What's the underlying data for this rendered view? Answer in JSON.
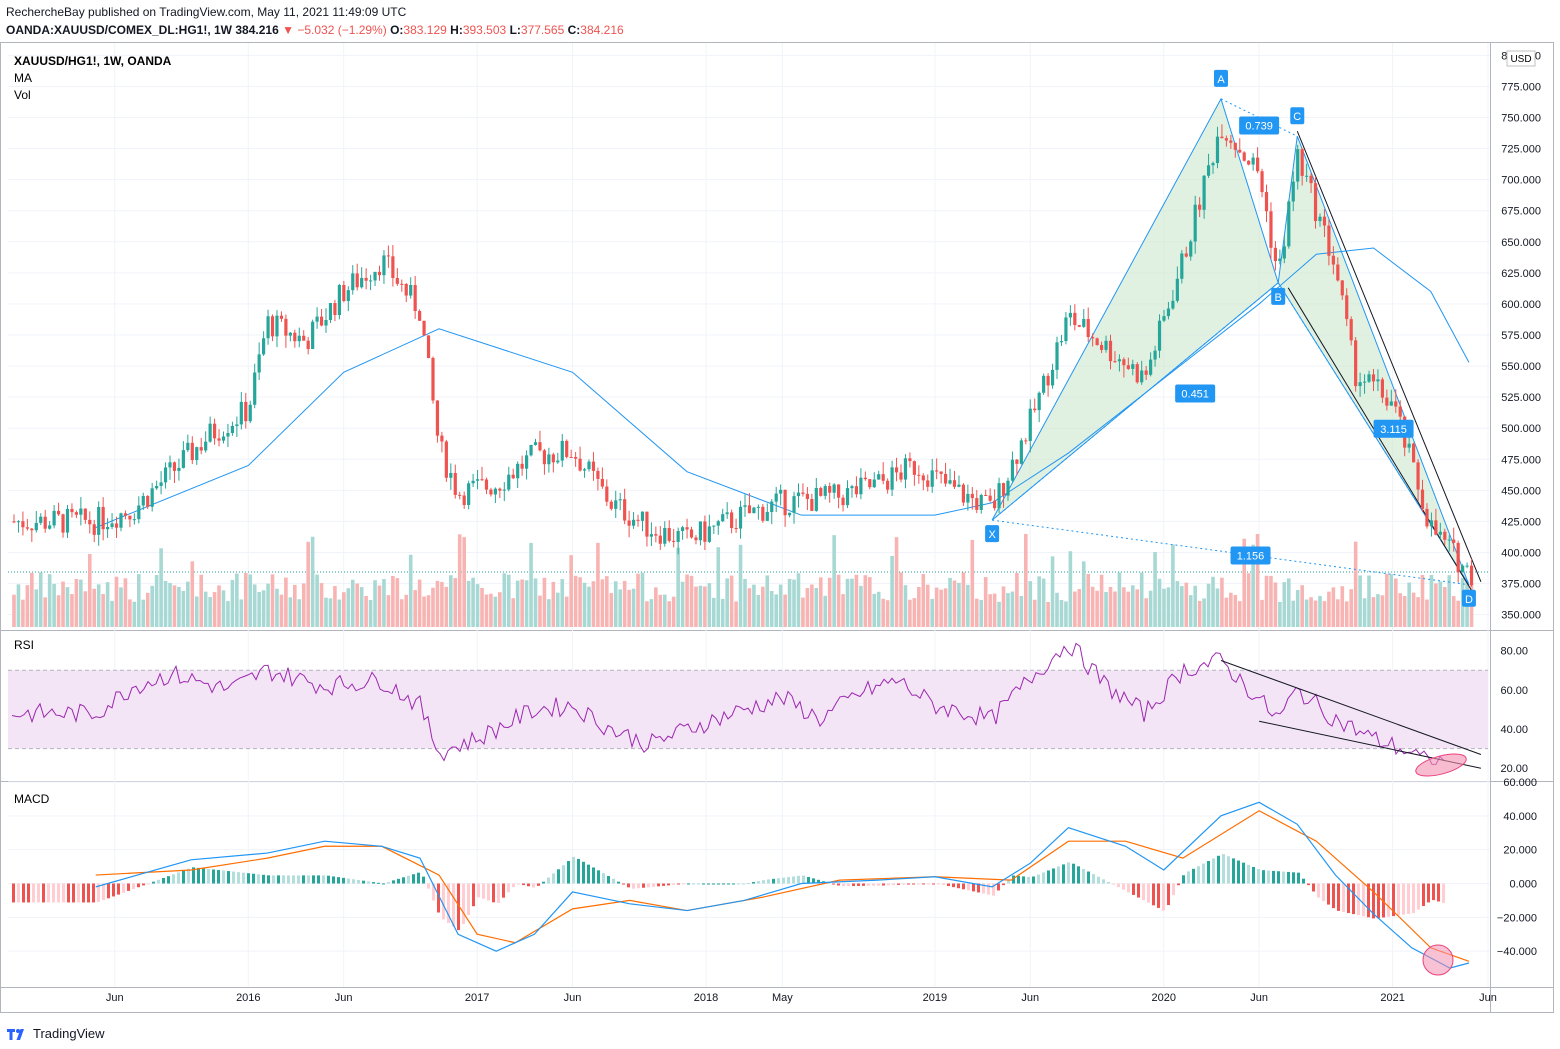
{
  "header": {
    "line1": "RechercheBay published on TradingView.com, May 11, 2021 11:49:09 UTC",
    "symbol": "OANDA:XAUUSD/COMEX_DL:HG1!, 1W",
    "last": "384.216",
    "change": "−5.032 (−1.29%)",
    "o_label": "O:",
    "o": "383.129",
    "h_label": "H:",
    "h": "393.503",
    "l_label": "L:",
    "l": "377.565",
    "c_label": "C:",
    "c": "384.216"
  },
  "legend": {
    "title": "XAUUSD/HG1!, 1W, OANDA",
    "ma": "MA",
    "vol": "Vol",
    "currency": "USD"
  },
  "footer": {
    "brand": "TradingView"
  },
  "colors": {
    "up": "#26a69a",
    "down": "#ef5350",
    "ma": "#2196f3",
    "rsi": "#9c27b0",
    "macd": "#2196f3",
    "signal": "#ff6d00",
    "rsi_band": "#e1bee7",
    "pattern_fill": "#c8e6c9"
  },
  "chart_data": [
    {
      "type": "candlestick",
      "title": "XAUUSD/HG1!, 1W, OANDA",
      "x_ticks": [
        "Jun",
        "2016",
        "Jun",
        "2017",
        "Jun",
        "2018",
        "May",
        "2019",
        "Jun",
        "2020",
        "Jun",
        "2021",
        "Jun"
      ],
      "y_ticks": [
        "800.000",
        "775.000",
        "750.000",
        "725.000",
        "700.000",
        "675.000",
        "650.000",
        "625.000",
        "600.000",
        "575.000",
        "550.000",
        "525.000",
        "500.000",
        "475.000",
        "450.000",
        "425.000",
        "400.000",
        "375.000",
        "350.000"
      ],
      "ylim": [
        340,
        810
      ],
      "current_price": 384.216,
      "price_path": [
        {
          "t": "2015-05",
          "v": 425
        },
        {
          "t": "2015-07",
          "v": 435
        },
        {
          "t": "2015-09",
          "v": 465
        },
        {
          "t": "2015-11",
          "v": 495
        },
        {
          "t": "2016-01",
          "v": 515
        },
        {
          "t": "2016-02",
          "v": 585
        },
        {
          "t": "2016-04",
          "v": 570
        },
        {
          "t": "2016-06",
          "v": 610
        },
        {
          "t": "2016-08",
          "v": 635
        },
        {
          "t": "2016-10",
          "v": 595
        },
        {
          "t": "2016-11",
          "v": 485
        },
        {
          "t": "2016-12",
          "v": 448
        },
        {
          "t": "2017-02",
          "v": 455
        },
        {
          "t": "2017-04",
          "v": 478
        },
        {
          "t": "2017-06",
          "v": 482
        },
        {
          "t": "2017-08",
          "v": 440
        },
        {
          "t": "2017-10",
          "v": 420
        },
        {
          "t": "2017-12",
          "v": 410
        },
        {
          "t": "2018-03",
          "v": 430
        },
        {
          "t": "2018-05",
          "v": 440
        },
        {
          "t": "2018-08",
          "v": 445
        },
        {
          "t": "2018-10",
          "v": 455
        },
        {
          "t": "2018-12",
          "v": 470
        },
        {
          "t": "2019-02",
          "v": 450
        },
        {
          "t": "2019-04",
          "v": 435
        },
        {
          "t": "2019-06",
          "v": 505
        },
        {
          "t": "2019-08",
          "v": 590
        },
        {
          "t": "2019-10",
          "v": 565
        },
        {
          "t": "2019-12",
          "v": 540
        },
        {
          "t": "2020-02",
          "v": 635
        },
        {
          "t": "2020-04",
          "v": 745
        },
        {
          "t": "2020-06",
          "v": 705
        },
        {
          "t": "2020-07",
          "v": 622
        },
        {
          "t": "2020-08",
          "v": 720
        },
        {
          "t": "2020-10",
          "v": 630
        },
        {
          "t": "2020-11",
          "v": 545
        },
        {
          "t": "2021-01",
          "v": 520
        },
        {
          "t": "2021-03",
          "v": 420
        },
        {
          "t": "2021-05",
          "v": 384
        }
      ],
      "ma_path": [
        {
          "t": "2015-05",
          "v": 420
        },
        {
          "t": "2016-01",
          "v": 470
        },
        {
          "t": "2016-06",
          "v": 545
        },
        {
          "t": "2016-11",
          "v": 580
        },
        {
          "t": "2017-06",
          "v": 545
        },
        {
          "t": "2017-12",
          "v": 465
        },
        {
          "t": "2018-06",
          "v": 430
        },
        {
          "t": "2019-01",
          "v": 430
        },
        {
          "t": "2019-04",
          "v": 440
        },
        {
          "t": "2019-08",
          "v": 480
        },
        {
          "t": "2020-01",
          "v": 540
        },
        {
          "t": "2020-06",
          "v": 600
        },
        {
          "t": "2020-09",
          "v": 640
        },
        {
          "t": "2020-12",
          "v": 645
        },
        {
          "t": "2021-03",
          "v": 610
        },
        {
          "t": "2021-05",
          "v": 553
        }
      ],
      "volume_range": [
        0,
        100
      ],
      "harmonic_pattern": {
        "points": [
          {
            "label": "X",
            "t": "2019-04",
            "v": 426
          },
          {
            "label": "A",
            "t": "2020-04",
            "v": 765
          },
          {
            "label": "B",
            "t": "2020-07",
            "v": 617
          },
          {
            "label": "C",
            "t": "2020-08",
            "v": 735
          },
          {
            "label": "D",
            "t": "2021-05",
            "v": 374
          }
        ],
        "ratios": [
          "0.451",
          "0.739",
          "3.115",
          "1.156"
        ]
      }
    },
    {
      "type": "line",
      "title": "RSI",
      "y_ticks": [
        "80.00",
        "60.00",
        "40.00",
        "20.00"
      ],
      "ylim": [
        14,
        88
      ],
      "band": [
        30,
        70
      ],
      "series": [
        {
          "values": [
            {
              "t": "2015-05",
              "v": 48
            },
            {
              "t": "2015-07",
              "v": 62
            },
            {
              "t": "2015-09",
              "v": 68
            },
            {
              "t": "2015-12",
              "v": 60
            },
            {
              "t": "2016-02",
              "v": 70
            },
            {
              "t": "2016-05",
              "v": 62
            },
            {
              "t": "2016-08",
              "v": 65
            },
            {
              "t": "2016-10",
              "v": 52
            },
            {
              "t": "2016-11",
              "v": 28
            },
            {
              "t": "2017-01",
              "v": 35
            },
            {
              "t": "2017-04",
              "v": 50
            },
            {
              "t": "2017-06",
              "v": 52
            },
            {
              "t": "2017-08",
              "v": 40
            },
            {
              "t": "2017-10",
              "v": 32
            },
            {
              "t": "2017-12",
              "v": 40
            },
            {
              "t": "2018-03",
              "v": 50
            },
            {
              "t": "2018-05",
              "v": 56
            },
            {
              "t": "2018-07",
              "v": 45
            },
            {
              "t": "2018-09",
              "v": 58
            },
            {
              "t": "2018-11",
              "v": 65
            },
            {
              "t": "2019-01",
              "v": 52
            },
            {
              "t": "2019-04",
              "v": 45
            },
            {
              "t": "2019-06",
              "v": 66
            },
            {
              "t": "2019-08",
              "v": 84
            },
            {
              "t": "2019-10",
              "v": 62
            },
            {
              "t": "2019-12",
              "v": 48
            },
            {
              "t": "2020-02",
              "v": 70
            },
            {
              "t": "2020-04",
              "v": 75
            },
            {
              "t": "2020-06",
              "v": 55
            },
            {
              "t": "2020-07",
              "v": 45
            },
            {
              "t": "2020-08",
              "v": 60
            },
            {
              "t": "2020-10",
              "v": 45
            },
            {
              "t": "2020-12",
              "v": 35
            },
            {
              "t": "2021-02",
              "v": 28
            },
            {
              "t": "2021-03",
              "v": 22
            },
            {
              "t": "2021-05",
              "v": 27
            }
          ]
        }
      ],
      "trendlines": [
        {
          "from": {
            "t": "2020-04",
            "v": 75
          },
          "to": {
            "t": "2021-05",
            "v": 27
          }
        },
        {
          "from": {
            "t": "2020-06",
            "v": 44
          },
          "to": {
            "t": "2021-05",
            "v": 20
          }
        }
      ]
    },
    {
      "type": "line",
      "title": "MACD",
      "y_ticks": [
        "60.000",
        "40.000",
        "20.000",
        "0.000",
        "−20.000",
        "−40.000"
      ],
      "ylim": [
        -60,
        60
      ],
      "series": [
        {
          "values": [
            {
              "t": "2015-05",
              "v": -2
            },
            {
              "t": "2015-10",
              "v": 14
            },
            {
              "t": "2016-02",
              "v": 18
            },
            {
              "t": "2016-05",
              "v": 25
            },
            {
              "t": "2016-08",
              "v": 22
            },
            {
              "t": "2016-10",
              "v": 15
            },
            {
              "t": "2016-12",
              "v": -30
            },
            {
              "t": "2017-02",
              "v": -40
            },
            {
              "t": "2017-04",
              "v": -30
            },
            {
              "t": "2017-06",
              "v": -5
            },
            {
              "t": "2017-09",
              "v": -12
            },
            {
              "t": "2017-12",
              "v": -16
            },
            {
              "t": "2018-03",
              "v": -10
            },
            {
              "t": "2018-06",
              "v": 0
            },
            {
              "t": "2018-10",
              "v": 2
            },
            {
              "t": "2019-01",
              "v": 4
            },
            {
              "t": "2019-04",
              "v": -2
            },
            {
              "t": "2019-06",
              "v": 12
            },
            {
              "t": "2019-08",
              "v": 33
            },
            {
              "t": "2019-11",
              "v": 22
            },
            {
              "t": "2020-01",
              "v": 8
            },
            {
              "t": "2020-04",
              "v": 40
            },
            {
              "t": "2020-06",
              "v": 48
            },
            {
              "t": "2020-08",
              "v": 35
            },
            {
              "t": "2020-10",
              "v": 5
            },
            {
              "t": "2020-12",
              "v": -18
            },
            {
              "t": "2021-02",
              "v": -38
            },
            {
              "t": "2021-04",
              "v": -50
            },
            {
              "t": "2021-05",
              "v": -47
            }
          ]
        },
        {
          "values": [
            {
              "t": "2015-05",
              "v": 5
            },
            {
              "t": "2015-10",
              "v": 8
            },
            {
              "t": "2016-02",
              "v": 15
            },
            {
              "t": "2016-05",
              "v": 22
            },
            {
              "t": "2016-08",
              "v": 22
            },
            {
              "t": "2016-11",
              "v": 5
            },
            {
              "t": "2017-01",
              "v": -30
            },
            {
              "t": "2017-03",
              "v": -35
            },
            {
              "t": "2017-06",
              "v": -15
            },
            {
              "t": "2017-09",
              "v": -10
            },
            {
              "t": "2017-12",
              "v": -16
            },
            {
              "t": "2018-04",
              "v": -8
            },
            {
              "t": "2018-08",
              "v": 2
            },
            {
              "t": "2019-01",
              "v": 4
            },
            {
              "t": "2019-05",
              "v": 2
            },
            {
              "t": "2019-08",
              "v": 25
            },
            {
              "t": "2019-11",
              "v": 25
            },
            {
              "t": "2020-02",
              "v": 15
            },
            {
              "t": "2020-06",
              "v": 43
            },
            {
              "t": "2020-09",
              "v": 25
            },
            {
              "t": "2020-12",
              "v": -5
            },
            {
              "t": "2021-03",
              "v": -38
            },
            {
              "t": "2021-05",
              "v": -46
            }
          ]
        }
      ]
    }
  ]
}
